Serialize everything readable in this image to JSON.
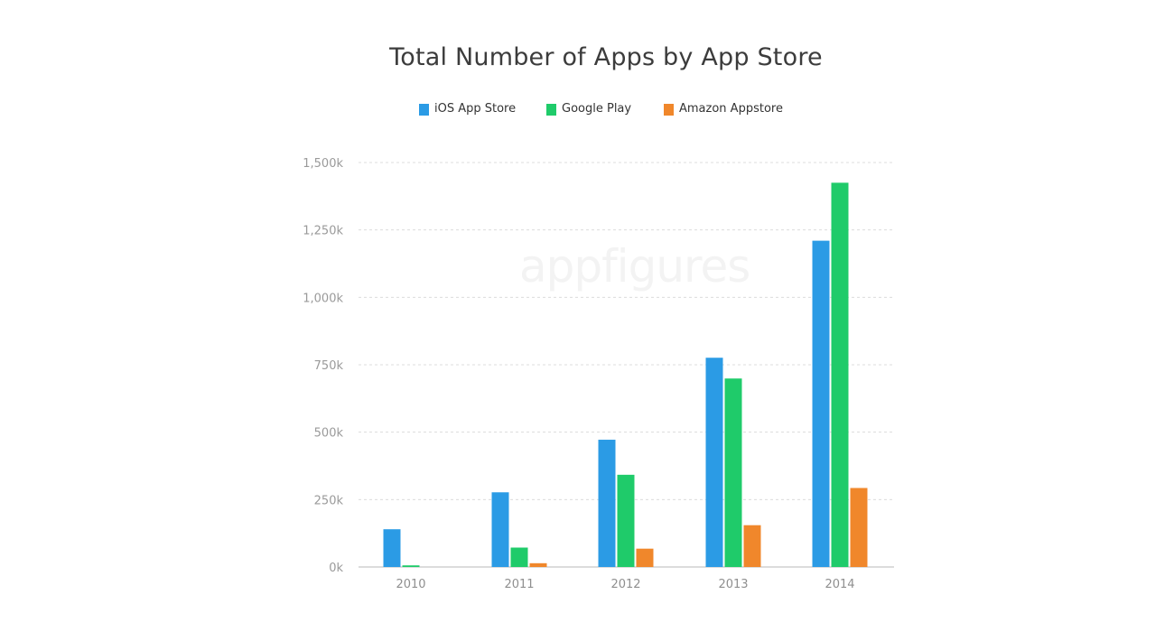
{
  "watermark": "appfigures",
  "chart_data": {
    "type": "bar",
    "title": "Total Number of Apps by App Store",
    "xlabel": "",
    "ylabel": "",
    "categories": [
      "2010",
      "2011",
      "2012",
      "2013",
      "2014"
    ],
    "series": [
      {
        "name": "iOS App Store",
        "color": "#2b9be5",
        "values": [
          140,
          277,
          472,
          776,
          1210
        ]
      },
      {
        "name": "Google Play",
        "color": "#1fcb6a",
        "values": [
          6,
          72,
          342,
          699,
          1425
        ]
      },
      {
        "name": "Amazon Appstore",
        "color": "#f0872b",
        "values": [
          0,
          14,
          68,
          155,
          293
        ]
      }
    ],
    "ylim": [
      0,
      1500
    ],
    "yticks": [
      0,
      250,
      500,
      750,
      1000,
      1250,
      1500
    ],
    "ytick_labels": [
      "0k",
      "250k",
      "500k",
      "750k",
      "1,000k",
      "1,250k",
      "1,500k"
    ],
    "grid": true,
    "legend_position": "top-center"
  }
}
